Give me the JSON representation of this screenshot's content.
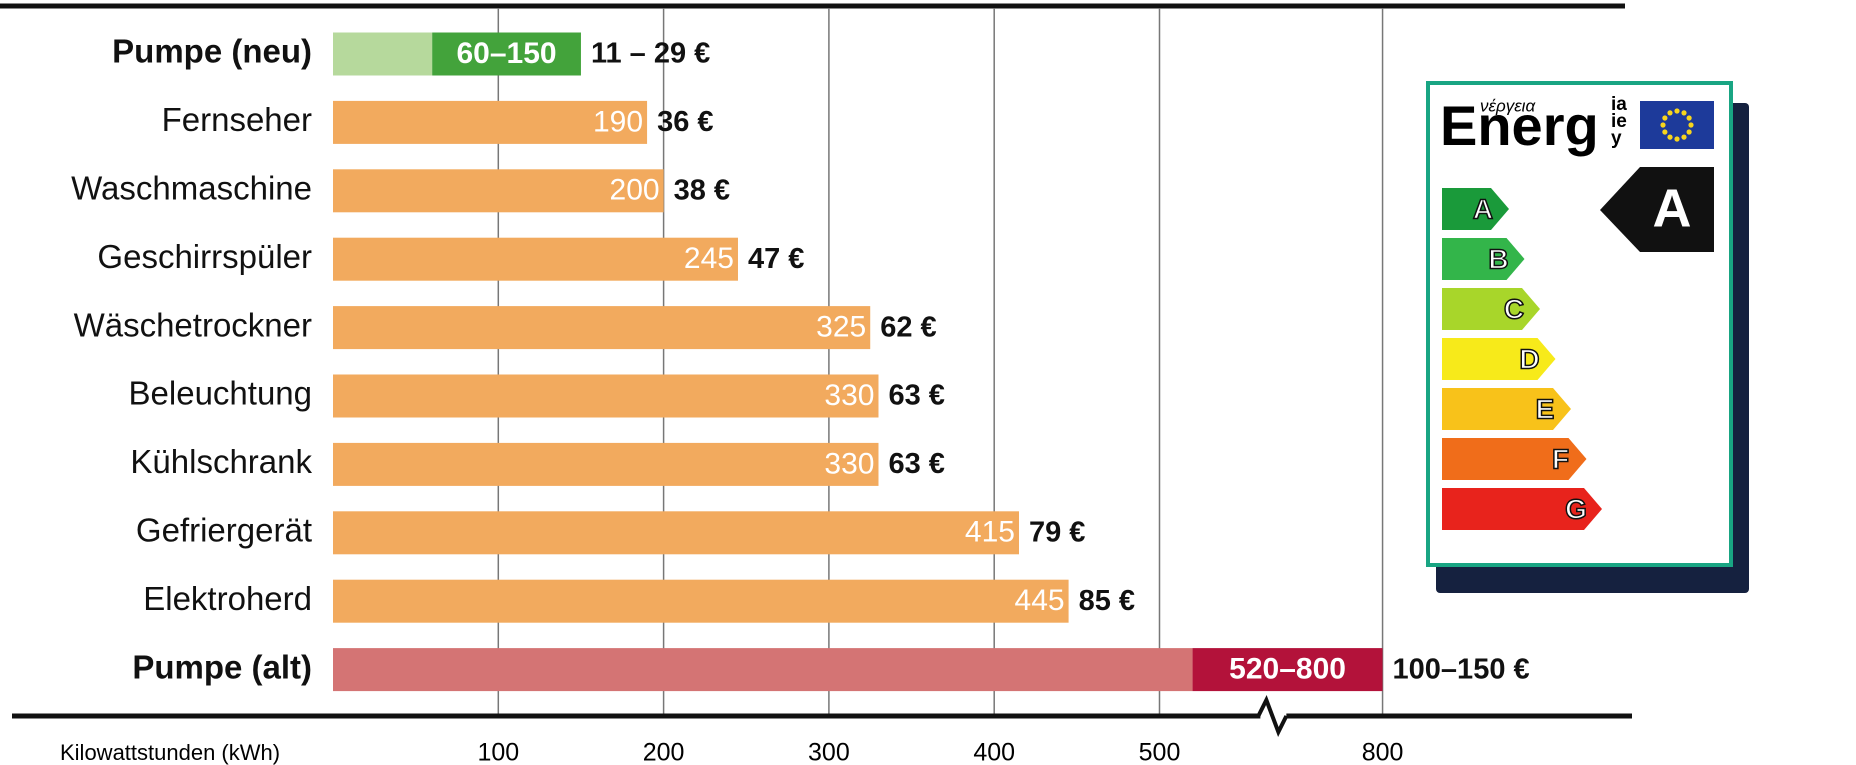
{
  "chart_data": {
    "type": "bar",
    "categories": [
      "Pumpe (neu)",
      "Fernseher",
      "Waschmaschine",
      "Geschirrspüler",
      "Wäschetrockner",
      "Beleuchtung",
      "Kühlschrank",
      "Gefriergerät",
      "Elektroherd",
      "Pumpe (alt)"
    ],
    "values": [
      150,
      190,
      200,
      245,
      325,
      330,
      330,
      415,
      445,
      800
    ],
    "low_values": [
      60,
      null,
      null,
      null,
      null,
      null,
      null,
      null,
      null,
      520
    ],
    "value_labels": [
      "60–150",
      null,
      null,
      null,
      null,
      null,
      null,
      null,
      null,
      "520–800"
    ],
    "cost_labels": [
      "11 – 29 €",
      "36 €",
      "38 €",
      "47 €",
      "62 €",
      "63 €",
      "63 €",
      "79 €",
      "85 €",
      "100–150 €"
    ],
    "colors": [
      "#b6d99c",
      "#f2aa5e",
      "#f2aa5e",
      "#f2aa5e",
      "#f2aa5e",
      "#f2aa5e",
      "#f2aa5e",
      "#f2aa5e",
      "#f2aa5e",
      "#d47474"
    ],
    "range_colors": [
      "#43a33b",
      null,
      null,
      null,
      null,
      null,
      null,
      null,
      null,
      "#b3123a"
    ],
    "x_label": "Kilowattstunden (kWh)",
    "xlim": [
      0,
      800
    ],
    "axis_break": [
      520,
      800
    ],
    "xticks": [
      100,
      200,
      300,
      400,
      500,
      800
    ],
    "grid": true
  },
  "energy_label": {
    "logo": "Energ",
    "logo_greek": "νέργεια",
    "logo_suffix": [
      "ia",
      "ie",
      "y"
    ],
    "classes": [
      "A",
      "B",
      "C",
      "D",
      "E",
      "F",
      "G"
    ],
    "class_colors": [
      "#1a9a3a",
      "#33b54a",
      "#a8d62a",
      "#f7ea1a",
      "#f8c21a",
      "#f06d1a",
      "#e8231c"
    ],
    "rating": "A"
  }
}
